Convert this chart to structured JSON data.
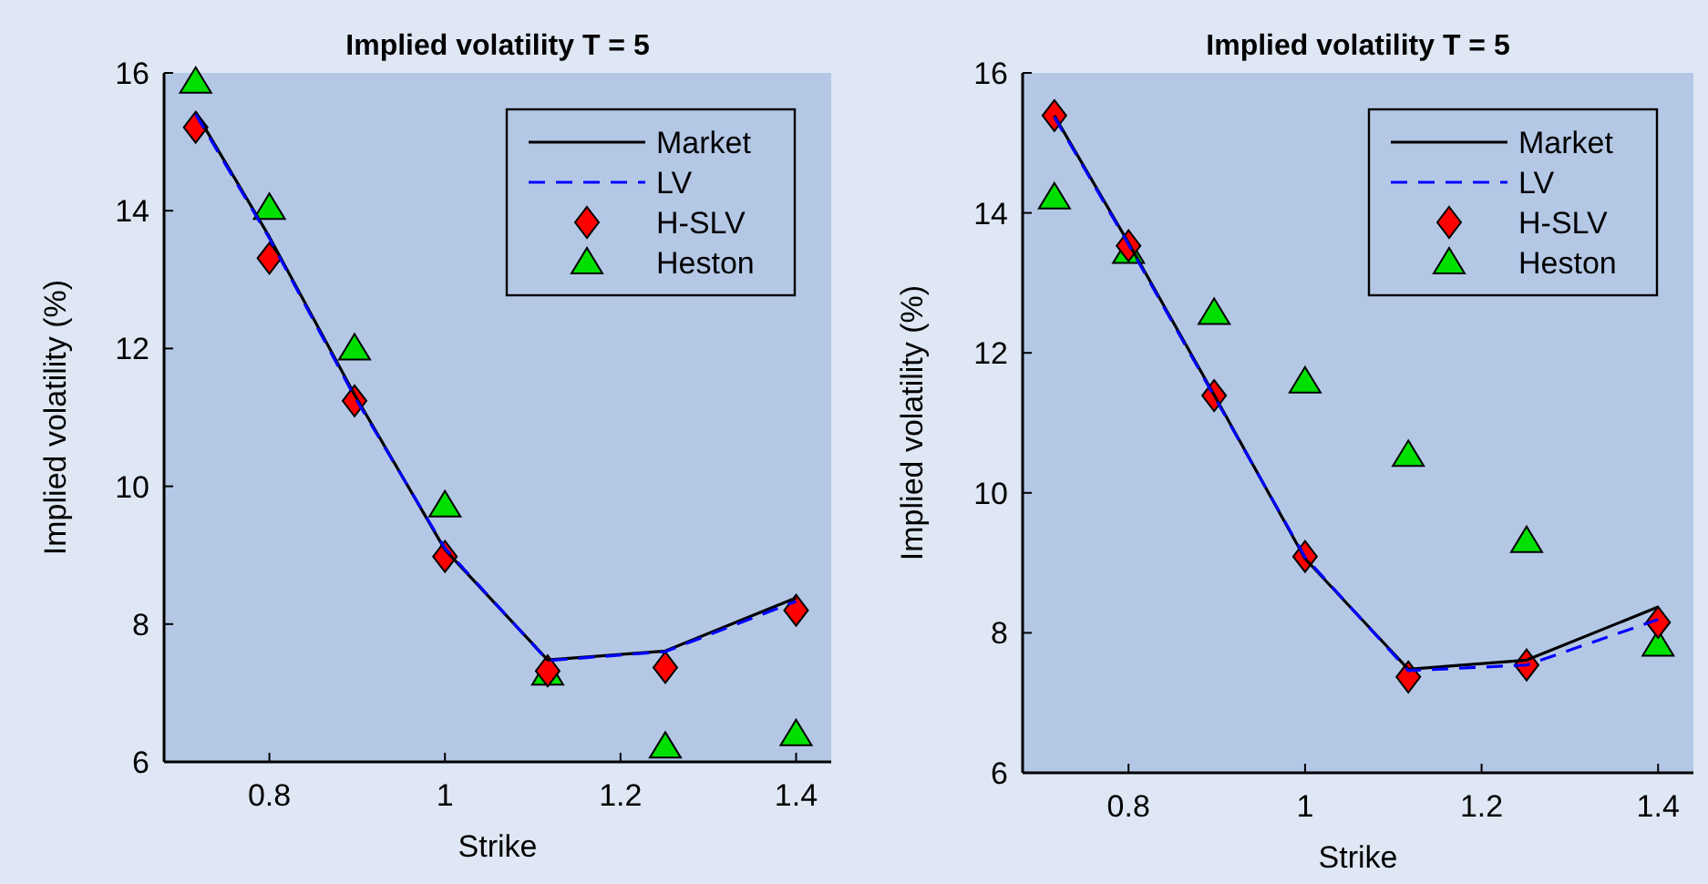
{
  "chart_data": [
    {
      "type": "line",
      "title": "Implied volatility T = 5",
      "xlabel": "Strike",
      "ylabel": "Implied volatility (%)",
      "x": [
        0.716,
        0.8,
        0.897,
        1.0,
        1.117,
        1.251,
        1.4
      ],
      "xlim": [
        0.68,
        1.44
      ],
      "xticks": [
        0.8,
        1,
        1.2,
        1.4
      ],
      "ylim": [
        6,
        16
      ],
      "yticks": [
        6,
        8,
        10,
        12,
        14,
        16
      ],
      "grid": false,
      "legend": "top right",
      "series": [
        {
          "name": "Market",
          "color": "#000000",
          "line_style": "solid",
          "marker": "none",
          "values": [
            15.43,
            13.62,
            11.33,
            9.08,
            7.48,
            7.61,
            8.38
          ]
        },
        {
          "name": "LV",
          "color": "#0000ff",
          "line_style": "dashed",
          "marker": "none",
          "values": [
            15.4,
            13.6,
            11.3,
            9.1,
            7.47,
            7.6,
            8.33
          ]
        },
        {
          "name": "H-SLV",
          "type": "scatter",
          "color": "#ff0000",
          "marker": "diamond",
          "values": [
            15.21,
            13.31,
            11.24,
            8.98,
            7.32,
            7.37,
            8.2
          ]
        },
        {
          "name": "Heston",
          "type": "scatter",
          "color": "#00e000",
          "marker": "triangle",
          "values": [
            15.87,
            14.04,
            12.0,
            9.72,
            7.28,
            6.22,
            6.4
          ]
        }
      ]
    },
    {
      "type": "line",
      "title": "Implied volatility T = 5",
      "xlabel": "Strike",
      "ylabel": "Implied volatility (%)",
      "x": [
        0.716,
        0.8,
        0.897,
        1.0,
        1.117,
        1.251,
        1.4
      ],
      "xlim": [
        0.68,
        1.44
      ],
      "xticks": [
        0.8,
        1,
        1.2,
        1.4
      ],
      "ylim": [
        6,
        16
      ],
      "yticks": [
        6,
        8,
        10,
        12,
        14,
        16
      ],
      "grid": false,
      "legend": "top right",
      "series": [
        {
          "name": "Market",
          "color": "#000000",
          "line_style": "solid",
          "marker": "none",
          "values": [
            15.39,
            13.57,
            11.4,
            9.06,
            7.48,
            7.61,
            8.37
          ]
        },
        {
          "name": "LV",
          "color": "#0000ff",
          "line_style": "dashed",
          "marker": "none",
          "values": [
            15.37,
            13.55,
            11.38,
            9.08,
            7.46,
            7.54,
            8.19
          ]
        },
        {
          "name": "H-SLV",
          "type": "scatter",
          "color": "#ff0000",
          "marker": "diamond",
          "values": [
            15.39,
            13.53,
            11.39,
            9.09,
            7.37,
            7.54,
            8.15
          ]
        },
        {
          "name": "Heston",
          "type": "scatter",
          "color": "#00e000",
          "marker": "triangle",
          "values": [
            14.22,
            13.44,
            12.57,
            11.59,
            10.54,
            9.31,
            7.83
          ]
        }
      ]
    }
  ]
}
